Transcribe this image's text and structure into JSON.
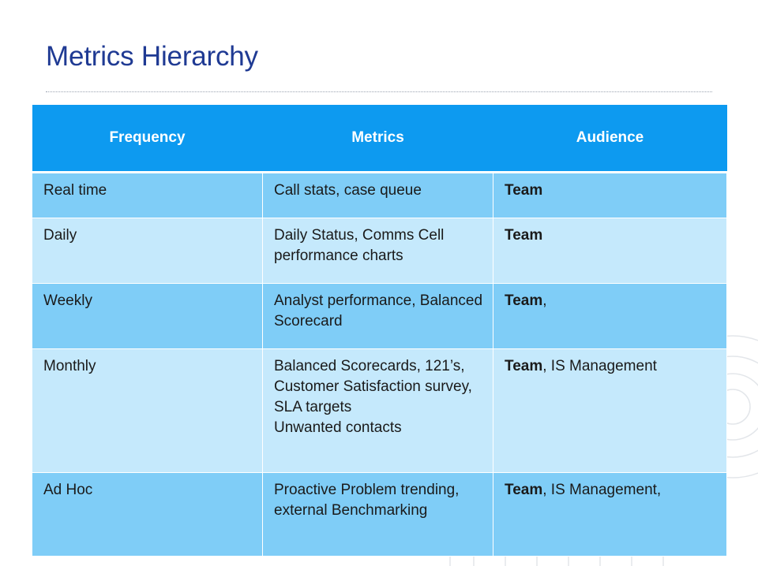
{
  "title": "Metrics Hierarchy",
  "table": {
    "headers": [
      "Frequency",
      "Metrics",
      "Audience"
    ],
    "rows": [
      {
        "frequency": "Real time",
        "metrics": [
          "Call stats, case queue"
        ],
        "audience_bold": "Team",
        "audience_rest": ""
      },
      {
        "frequency": "Daily",
        "metrics": [
          "Daily Status, Comms Cell performance charts"
        ],
        "audience_bold": "Team",
        "audience_rest": ""
      },
      {
        "frequency": "Weekly",
        "metrics": [
          "Analyst performance, Balanced Scorecard"
        ],
        "audience_bold": "Team",
        "audience_rest": ","
      },
      {
        "frequency": "Monthly",
        "metrics": [
          "Balanced Scorecards, 121’s, Customer Satisfaction survey, SLA targets",
          "Unwanted contacts"
        ],
        "audience_bold": "Team",
        "audience_rest": ", IS Management"
      },
      {
        "frequency": "Ad Hoc",
        "metrics": [
          "Proactive Problem trending, external Benchmarking"
        ],
        "audience_bold": "Team",
        "audience_rest": ", IS Management,"
      }
    ]
  },
  "colors": {
    "title": "#1f3a93",
    "header_bg": "#0d9af0",
    "row_dark": "#7fcdf7",
    "row_light": "#c5e9fc"
  }
}
